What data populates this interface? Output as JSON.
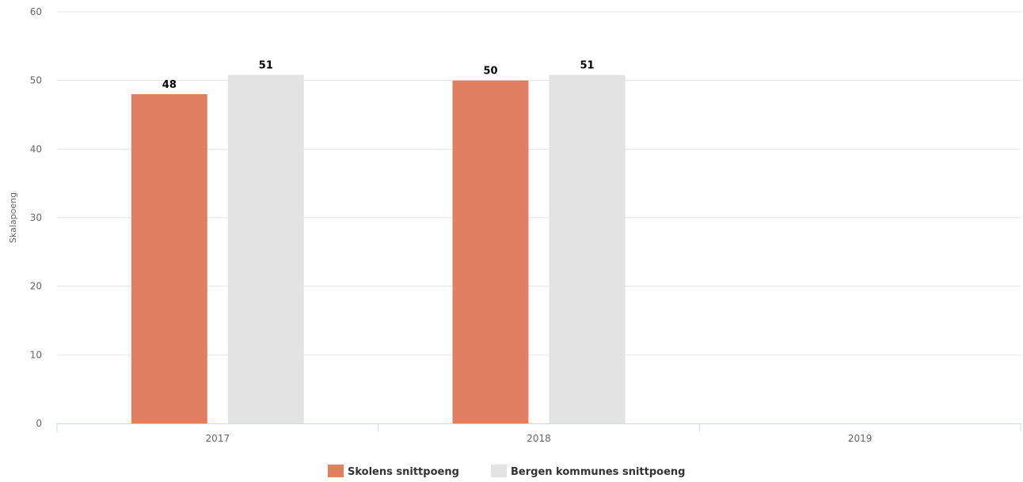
{
  "chart_data": {
    "type": "bar",
    "categories": [
      "2017",
      "2018",
      "2019"
    ],
    "series": [
      {
        "name": "Skolens snittpoeng",
        "color": "#e07f61",
        "values": [
          48,
          50,
          null
        ],
        "labels": [
          "48",
          "50",
          ""
        ]
      },
      {
        "name": "Bergen kommunes snittpoeng",
        "color": "#e3e3e3",
        "values": [
          50.8,
          50.8,
          null
        ],
        "labels": [
          "51",
          "51",
          ""
        ]
      }
    ],
    "ylabel": "Skalapoeng",
    "ylim": [
      0,
      60
    ],
    "yticks": [
      "0",
      "10",
      "20",
      "30",
      "40",
      "50",
      "60"
    ],
    "grid": true,
    "legend": "bottom-center"
  }
}
